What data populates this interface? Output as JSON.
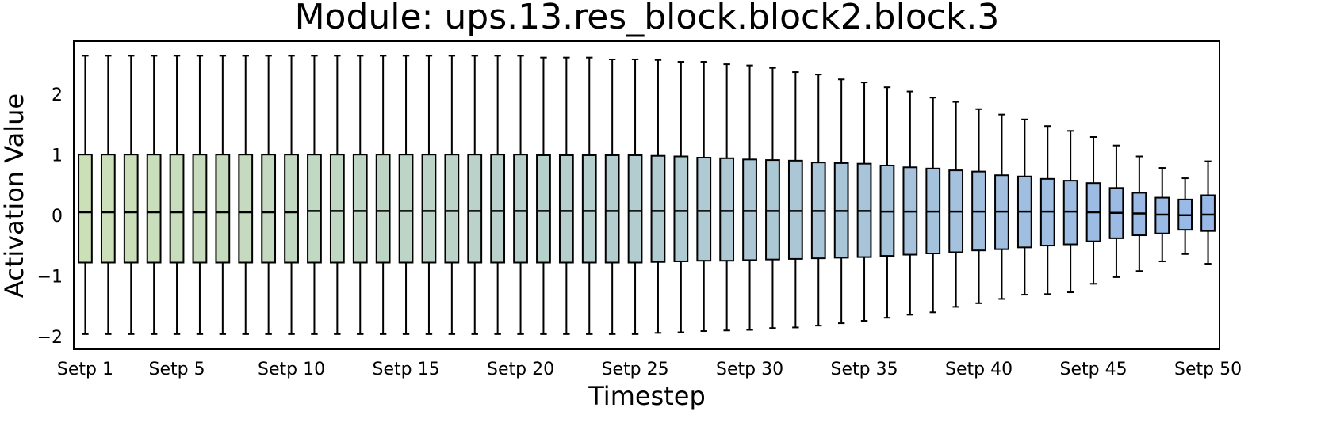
{
  "chart_data": {
    "type": "box",
    "title": "Module: ups.13.res_block.block2.block.3",
    "xlabel": "Timestep",
    "ylabel": "Activation Value",
    "categories": [
      "Setp 1",
      null,
      null,
      null,
      "Setp 5",
      null,
      null,
      null,
      null,
      "Setp 10",
      null,
      null,
      null,
      null,
      "Setp 15",
      null,
      null,
      null,
      null,
      "Setp 20",
      null,
      null,
      null,
      null,
      "Setp 25",
      null,
      null,
      null,
      null,
      "Setp 30",
      null,
      null,
      null,
      null,
      "Setp 35",
      null,
      null,
      null,
      null,
      "Setp 40",
      null,
      null,
      null,
      null,
      "Setp 45",
      null,
      null,
      null,
      null,
      "Setp 50"
    ],
    "whishi": [
      2.66,
      2.66,
      2.66,
      2.66,
      2.66,
      2.66,
      2.66,
      2.66,
      2.66,
      2.66,
      2.66,
      2.66,
      2.66,
      2.66,
      2.66,
      2.66,
      2.66,
      2.66,
      2.66,
      2.66,
      2.63,
      2.63,
      2.63,
      2.6,
      2.6,
      2.59,
      2.56,
      2.56,
      2.52,
      2.5,
      2.46,
      2.39,
      2.35,
      2.27,
      2.22,
      2.14,
      2.07,
      1.97,
      1.9,
      1.78,
      1.69,
      1.61,
      1.5,
      1.42,
      1.32,
      1.18,
      1.0,
      0.81,
      0.64,
      0.92
    ],
    "q3": [
      1.03,
      1.03,
      1.03,
      1.03,
      1.03,
      1.03,
      1.03,
      1.03,
      1.03,
      1.03,
      1.03,
      1.03,
      1.03,
      1.03,
      1.03,
      1.03,
      1.03,
      1.03,
      1.03,
      1.03,
      1.02,
      1.02,
      1.02,
      1.02,
      1.02,
      1.01,
      1.0,
      0.98,
      0.97,
      0.95,
      0.94,
      0.93,
      0.9,
      0.89,
      0.88,
      0.85,
      0.82,
      0.8,
      0.77,
      0.75,
      0.69,
      0.67,
      0.63,
      0.6,
      0.56,
      0.48,
      0.4,
      0.32,
      0.29,
      0.36
    ],
    "median": [
      0.08,
      0.08,
      0.08,
      0.08,
      0.08,
      0.08,
      0.08,
      0.08,
      0.08,
      0.08,
      0.1,
      0.1,
      0.1,
      0.1,
      0.1,
      0.1,
      0.1,
      0.1,
      0.1,
      0.1,
      0.1,
      0.1,
      0.1,
      0.1,
      0.1,
      0.1,
      0.1,
      0.1,
      0.1,
      0.1,
      0.1,
      0.1,
      0.1,
      0.1,
      0.1,
      0.09,
      0.09,
      0.09,
      0.09,
      0.09,
      0.09,
      0.09,
      0.09,
      0.09,
      0.08,
      0.07,
      0.06,
      0.04,
      0.03,
      0.04
    ],
    "q1": [
      -0.75,
      -0.75,
      -0.75,
      -0.75,
      -0.75,
      -0.75,
      -0.75,
      -0.75,
      -0.75,
      -0.75,
      -0.75,
      -0.75,
      -0.75,
      -0.75,
      -0.75,
      -0.75,
      -0.75,
      -0.75,
      -0.75,
      -0.75,
      -0.75,
      -0.75,
      -0.75,
      -0.75,
      -0.75,
      -0.74,
      -0.73,
      -0.72,
      -0.72,
      -0.71,
      -0.7,
      -0.69,
      -0.68,
      -0.67,
      -0.66,
      -0.64,
      -0.62,
      -0.6,
      -0.58,
      -0.55,
      -0.53,
      -0.5,
      -0.47,
      -0.45,
      -0.4,
      -0.35,
      -0.3,
      -0.27,
      -0.21,
      -0.23
    ],
    "whislo": [
      -1.93,
      -1.93,
      -1.93,
      -1.93,
      -1.93,
      -1.93,
      -1.93,
      -1.93,
      -1.93,
      -1.93,
      -1.93,
      -1.93,
      -1.93,
      -1.93,
      -1.93,
      -1.93,
      -1.93,
      -1.93,
      -1.93,
      -1.93,
      -1.93,
      -1.93,
      -1.93,
      -1.93,
      -1.93,
      -1.91,
      -1.9,
      -1.88,
      -1.87,
      -1.86,
      -1.83,
      -1.82,
      -1.79,
      -1.75,
      -1.71,
      -1.66,
      -1.61,
      -1.57,
      -1.48,
      -1.42,
      -1.35,
      -1.28,
      -1.27,
      -1.24,
      -1.1,
      -0.99,
      -0.89,
      -0.73,
      -0.61,
      -0.77
    ],
    "colors": [
      "#cce0b8",
      "#98b8e8"
    ],
    "ylim": [
      -2.18,
      2.9
    ],
    "yticks": [
      {
        "value": -2,
        "label": "−2"
      },
      {
        "value": -1,
        "label": "−1"
      },
      0,
      1,
      2
    ],
    "grid": false
  }
}
